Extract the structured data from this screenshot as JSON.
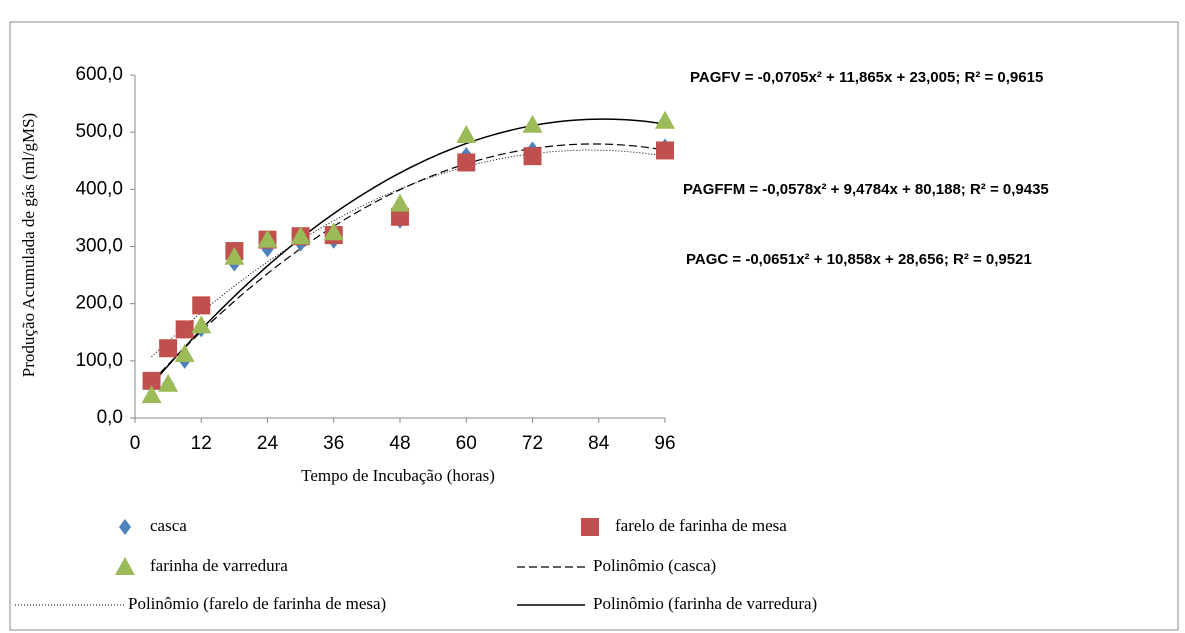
{
  "chart_data": {
    "type": "scatter",
    "x_label": "Tempo de Incubação (horas)",
    "y_label": "Produção Acumulada de gás (ml/gMS)",
    "x": [
      3,
      6,
      9,
      12,
      18,
      24,
      30,
      36,
      48,
      60,
      72,
      96
    ],
    "series": [
      {
        "name": "casca",
        "color": "#4f81bd",
        "marker": "diamond",
        "values": [
          58,
          60,
          100,
          155,
          270,
          295,
          305,
          310,
          345,
          460,
          470,
          475
        ],
        "trendline": {
          "name": "Polinômio (casca)",
          "dash": "dashed"
        }
      },
      {
        "name": "farelo de farinha de mesa",
        "color": "#c0504d",
        "marker": "square",
        "values": [
          65,
          122,
          155,
          197,
          292,
          312,
          318,
          320,
          352,
          447,
          458,
          468
        ],
        "trendline": {
          "name": "Polinômio (farelo de farinha de mesa)",
          "dash": "dotted"
        }
      },
      {
        "name": "farinha de varredura",
        "color": "#9bbb59",
        "marker": "triangle",
        "values": [
          40,
          60,
          112,
          162,
          282,
          312,
          318,
          325,
          375,
          495,
          513,
          520
        ],
        "trendline": {
          "name": "Polinômio (farinha de varredura)",
          "dash": "solid"
        }
      }
    ],
    "annotations": [
      "PAGFV = -0,0705x² + 11,865x + 23,005; R² = 0,9615",
      "PAGFFM = -0,0578x² + 9,4784x + 80,188; R² = 0,9435",
      "PAGC = -0,0651x² + 10,858x + 28,656; R² = 0,9521"
    ],
    "xlim": [
      0,
      96
    ],
    "xticks": [
      0,
      12,
      24,
      36,
      48,
      60,
      72,
      84,
      96
    ],
    "ylim": [
      0,
      600
    ],
    "yticks": [
      {
        "value": 0,
        "label": "0,0"
      },
      {
        "value": 100,
        "label": "100,0"
      },
      {
        "value": 200,
        "label": "200,0"
      },
      {
        "value": 300,
        "label": "300,0"
      },
      {
        "value": 400,
        "label": "400,0"
      },
      {
        "value": 500,
        "label": "500,0"
      },
      {
        "value": 600,
        "label": "600,0"
      }
    ],
    "grid": false
  }
}
